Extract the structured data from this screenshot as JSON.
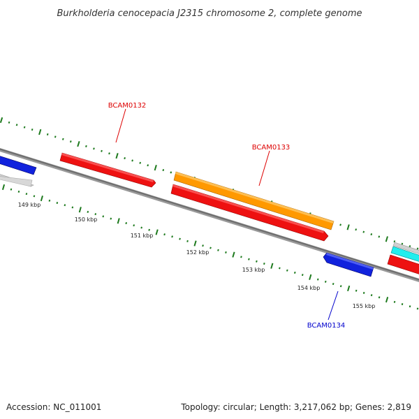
{
  "title": "Burkholderia cenocepacia J2315 chromosome 2, complete genome",
  "footer": {
    "accession": "Accession: NC_011001",
    "summary": "Topology: circular; Length: 3,217,062 bp; Genes: 2,819"
  },
  "ticks": [
    {
      "label": "149 kbp"
    },
    {
      "label": "150 kbp"
    },
    {
      "label": "151 kbp"
    },
    {
      "label": "152 kbp"
    },
    {
      "label": "153 kbp"
    },
    {
      "label": "154 kbp"
    },
    {
      "label": "155 kbp"
    }
  ],
  "genes": [
    {
      "label": "BCAM0132",
      "color": "#dd0000"
    },
    {
      "label": "BCAM0133",
      "color": "#dd0000"
    },
    {
      "label": "BCAM0134",
      "color": "#0000cc"
    }
  ],
  "colors": {
    "backbone": "#8a8a8a",
    "tick": "#1e7a1e",
    "cds_forward": "#ee1111",
    "cds_reverse": "#1122dd",
    "orange": "#ff9900",
    "grey": "#cccccc",
    "cyan": "#22eeee"
  }
}
